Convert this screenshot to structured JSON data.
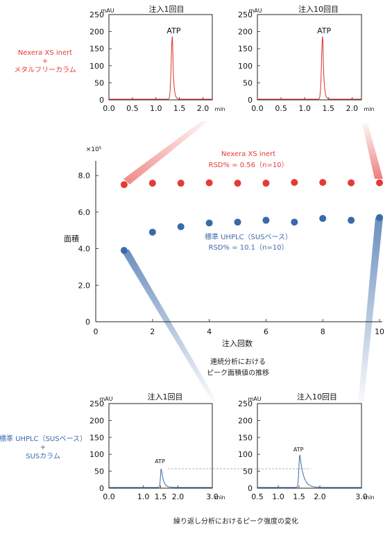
{
  "labels": {
    "top_system": [
      "Nexera XS inert",
      "+",
      "メタルフリーカラム"
    ],
    "bottom_system": [
      "標準 UHPLC（SUSベース）",
      "+",
      "SUSカラム"
    ],
    "caption_mid": [
      "連続分析における",
      "ピーク面積値の推移"
    ],
    "caption_bottom": "繰り返し分析におけるピーク強度の変化",
    "annotation_red": [
      "Nexera XS inert",
      "RSD% = 0.56（n=10）"
    ],
    "annotation_blue": [
      "標準 UHPLC（SUSベース）",
      "RSD% = 10.1（n=10）"
    ]
  },
  "colors": {
    "red": "#e53a36",
    "blue": "#3a6aa8",
    "red_trace": "#d9302c",
    "blue_trace": "#3a6aa8"
  },
  "chart_data": [
    {
      "type": "line",
      "title": "注入1回目",
      "ylabel": "mAU",
      "xlabel": "min",
      "peak_label": "ATP",
      "xlim": [
        0,
        2.2
      ],
      "ylim": [
        0,
        250
      ],
      "x_ticks": [
        "0.0",
        "0.5",
        "1.0",
        "1.5",
        "2.0"
      ],
      "y_ticks": [
        "0",
        "50",
        "100",
        "150",
        "200",
        "250"
      ],
      "peak": {
        "x": 1.35,
        "y": 185
      }
    },
    {
      "type": "line",
      "title": "注入10回目",
      "ylabel": "mAU",
      "xlabel": "min",
      "peak_label": "ATP",
      "xlim": [
        0,
        2.2
      ],
      "ylim": [
        0,
        250
      ],
      "x_ticks": [
        "0.0",
        "0.5",
        "1.0",
        "1.5",
        "2.0"
      ],
      "y_ticks": [
        "0",
        "50",
        "100",
        "150",
        "200",
        "250"
      ],
      "peak": {
        "x": 1.38,
        "y": 188
      }
    },
    {
      "type": "scatter",
      "xlabel": "注入回数",
      "ylabel": "面積",
      "y_exponent": "×10⁵",
      "xlim": [
        0,
        10
      ],
      "ylim": [
        0,
        8.8
      ],
      "x_ticks": [
        "0",
        "2",
        "4",
        "6",
        "8",
        "10"
      ],
      "y_ticks": [
        "0",
        "2.0",
        "4.0",
        "6.0",
        "8.0"
      ],
      "series": [
        {
          "name": "Nexera XS inert",
          "x": [
            1,
            2,
            3,
            4,
            5,
            6,
            7,
            8,
            9,
            10
          ],
          "values": [
            7.5,
            7.58,
            7.58,
            7.6,
            7.58,
            7.58,
            7.62,
            7.62,
            7.6,
            7.6
          ]
        },
        {
          "name": "標準 UHPLC（SUSベース）",
          "x": [
            1,
            2,
            3,
            4,
            5,
            6,
            7,
            8,
            9,
            10
          ],
          "values": [
            3.9,
            4.9,
            5.2,
            5.4,
            5.45,
            5.55,
            5.45,
            5.65,
            5.55,
            5.7
          ]
        }
      ]
    },
    {
      "type": "line",
      "title": "注入1回目",
      "ylabel": "mAU",
      "xlabel": "min",
      "peak_label": "ATP",
      "xlim": [
        0,
        3.0
      ],
      "ylim": [
        0,
        250
      ],
      "x_ticks": [
        "0.0",
        "1.0",
        "1.5",
        "2.0",
        "3.0"
      ],
      "y_ticks": [
        "0",
        "50",
        "100",
        "150",
        "200",
        "250"
      ],
      "peak": {
        "x": 1.52,
        "y": 58
      }
    },
    {
      "type": "line",
      "title": "注入10回目",
      "ylabel": "mAU",
      "xlabel": "min",
      "peak_label": "ATP",
      "xlim": [
        0.5,
        3.0
      ],
      "ylim": [
        0,
        250
      ],
      "x_ticks": [
        "0.5",
        "1.0",
        "1.5",
        "2.0",
        "3.0"
      ],
      "y_ticks": [
        "0",
        "50",
        "100",
        "150",
        "200",
        "250"
      ],
      "peak": {
        "x": 1.52,
        "y": 98
      }
    }
  ]
}
